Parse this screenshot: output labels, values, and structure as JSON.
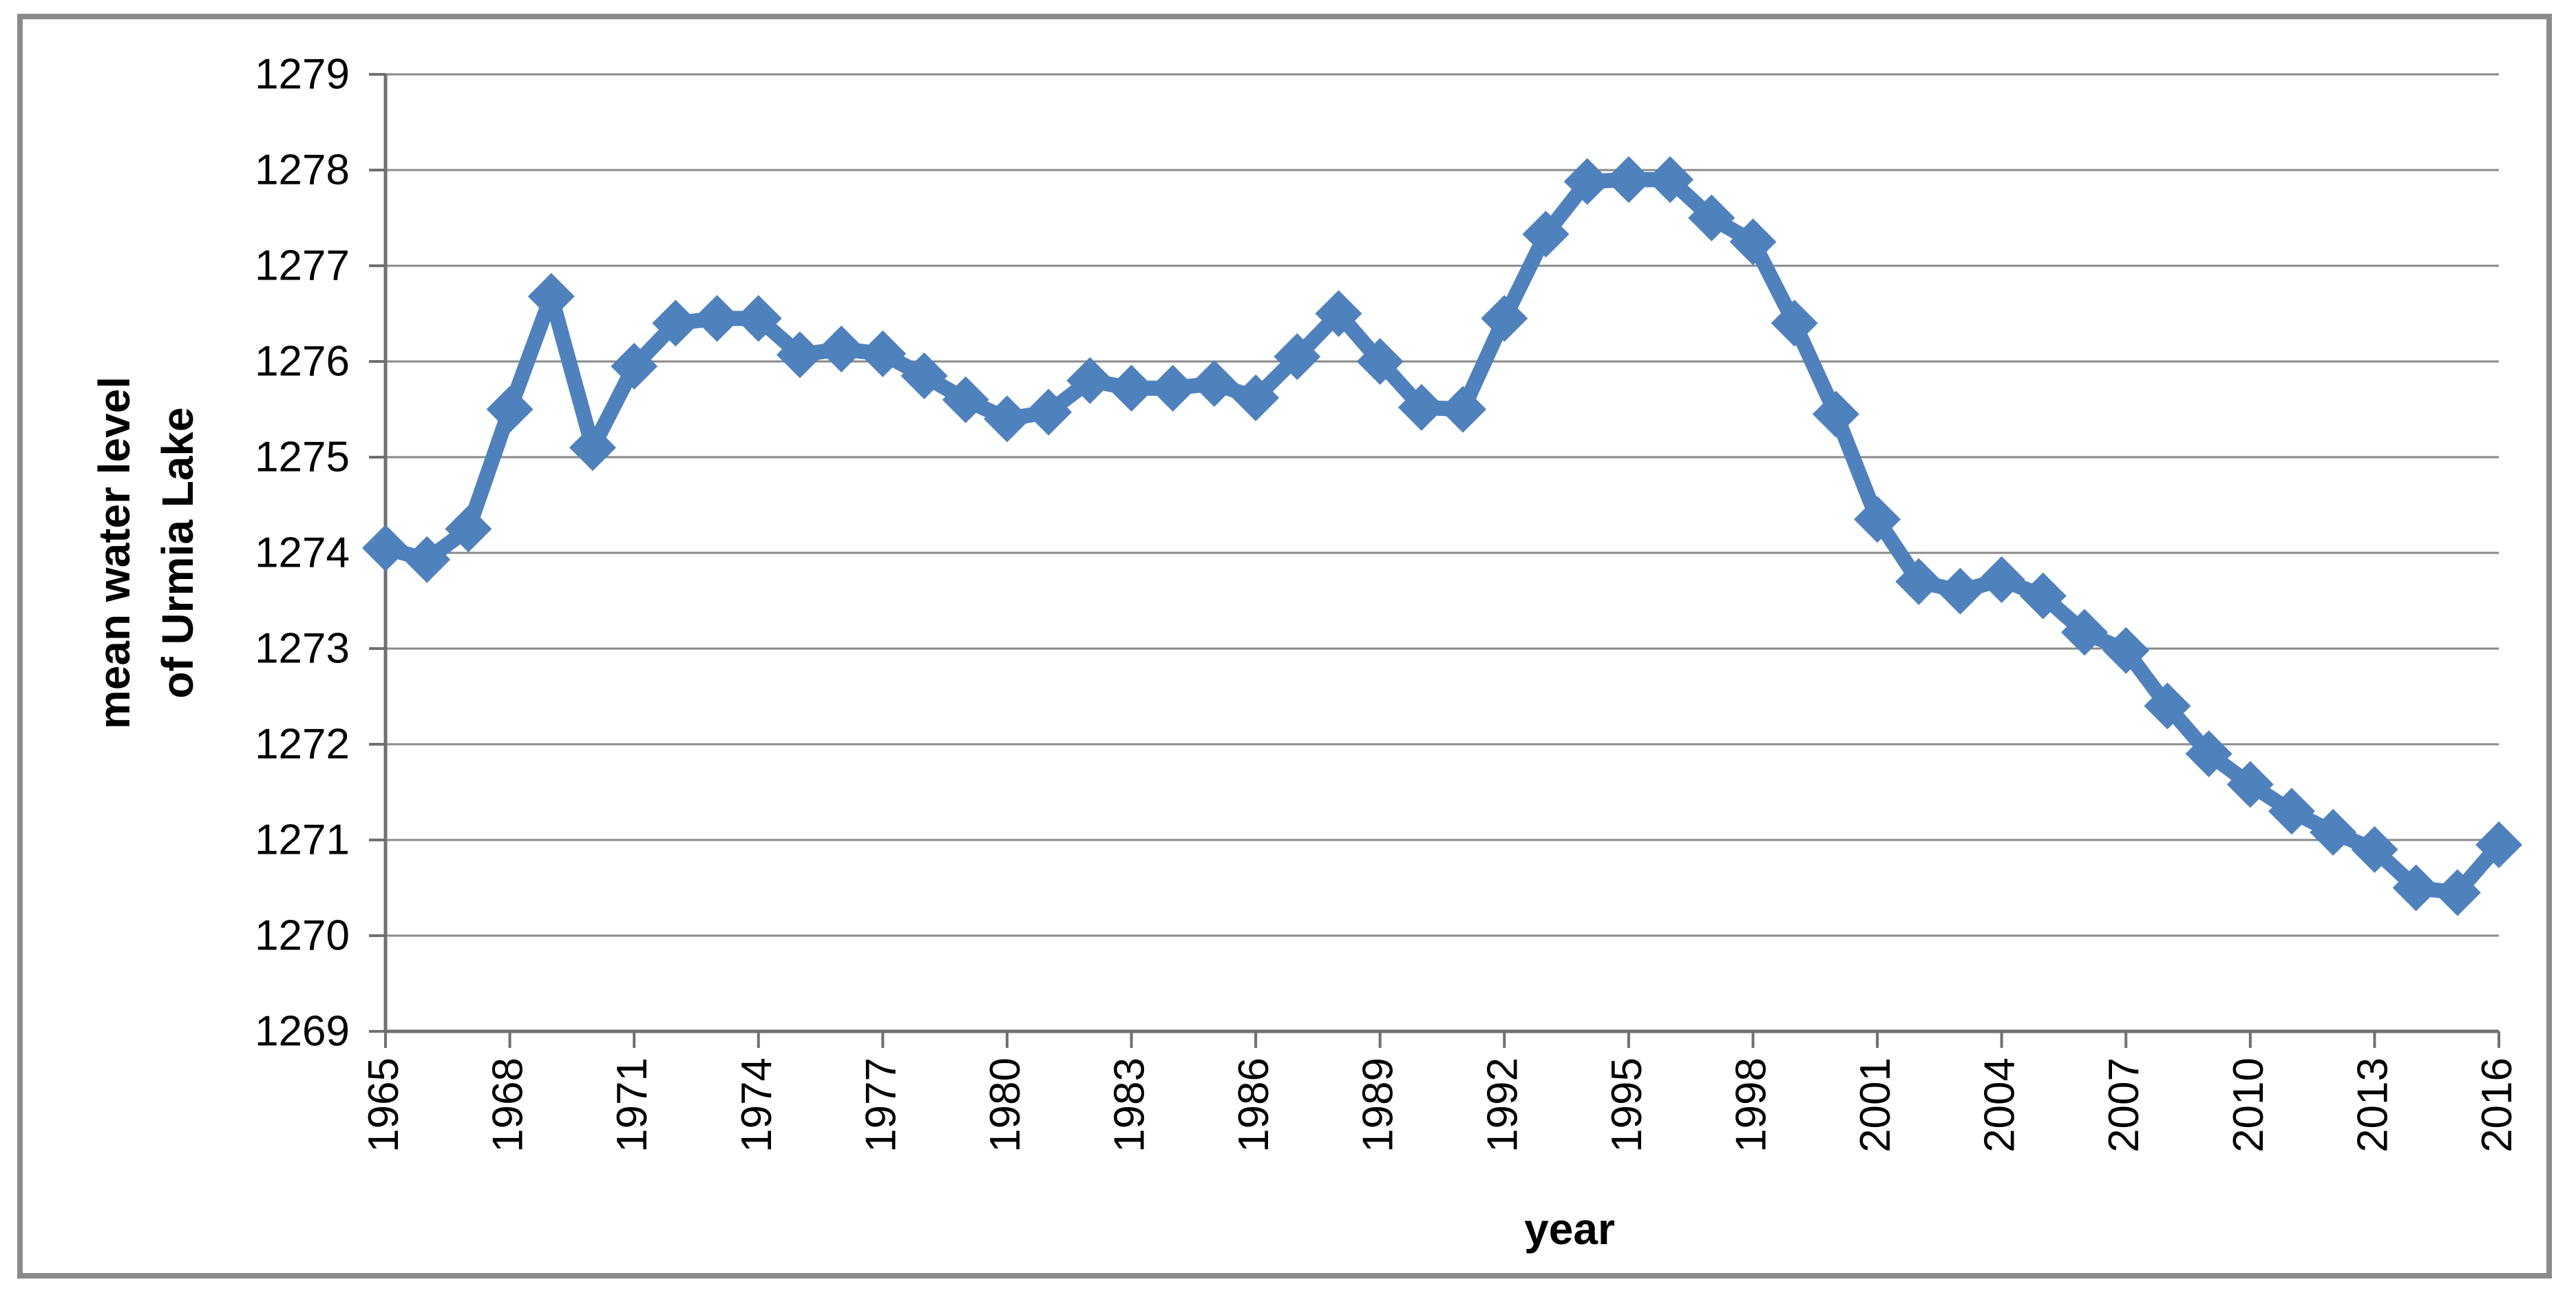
{
  "chart_data": {
    "type": "line",
    "title": "",
    "xlabel": "year",
    "ylabel_lines": [
      "mean water level",
      "of Urmia Lake"
    ],
    "x": [
      1965,
      1966,
      1967,
      1968,
      1969,
      1970,
      1971,
      1972,
      1973,
      1974,
      1975,
      1976,
      1977,
      1978,
      1979,
      1980,
      1981,
      1982,
      1983,
      1984,
      1985,
      1986,
      1987,
      1988,
      1989,
      1990,
      1991,
      1992,
      1993,
      1994,
      1995,
      1996,
      1997,
      1998,
      1999,
      2000,
      2001,
      2002,
      2003,
      2004,
      2005,
      2006,
      2007,
      2008,
      2009,
      2010,
      2011,
      2012,
      2013,
      2014,
      2015,
      2016
    ],
    "series": [
      {
        "name": "mean water level of Urmia Lake",
        "values": [
          1274.05,
          1273.93,
          1274.25,
          1275.5,
          1276.68,
          1275.1,
          1275.95,
          1276.4,
          1276.45,
          1276.45,
          1276.07,
          1276.13,
          1276.08,
          1275.85,
          1275.6,
          1275.4,
          1275.47,
          1275.8,
          1275.72,
          1275.72,
          1275.77,
          1275.62,
          1276.05,
          1276.5,
          1276.0,
          1275.52,
          1275.5,
          1276.45,
          1277.33,
          1277.88,
          1277.9,
          1277.9,
          1277.5,
          1277.25,
          1276.4,
          1275.45,
          1274.35,
          1273.7,
          1273.6,
          1273.72,
          1273.55,
          1273.17,
          1272.98,
          1272.4,
          1271.9,
          1271.58,
          1271.3,
          1271.08,
          1270.9,
          1270.5,
          1270.45,
          1270.95
        ]
      }
    ],
    "ylim": [
      1269,
      1279
    ],
    "xlim": [
      1965,
      2016
    ],
    "ytick_labels": [
      "1269",
      "1270",
      "1271",
      "1272",
      "1273",
      "1274",
      "1275",
      "1276",
      "1277",
      "1278",
      "1279"
    ],
    "xtick_labels": [
      "1965",
      "1968",
      "1971",
      "1974",
      "1977",
      "1980",
      "1983",
      "1986",
      "1989",
      "1992",
      "1995",
      "1998",
      "2001",
      "2004",
      "2007",
      "2010",
      "2013",
      "2016"
    ],
    "grid": "horizontal",
    "legend": "none",
    "marker": "diamond",
    "colors": {
      "line": "#4F81BD",
      "grid": "#8A8A8A",
      "axis": "#6F6F6F",
      "frame": "#8A8A8A",
      "text": "#000000"
    }
  }
}
